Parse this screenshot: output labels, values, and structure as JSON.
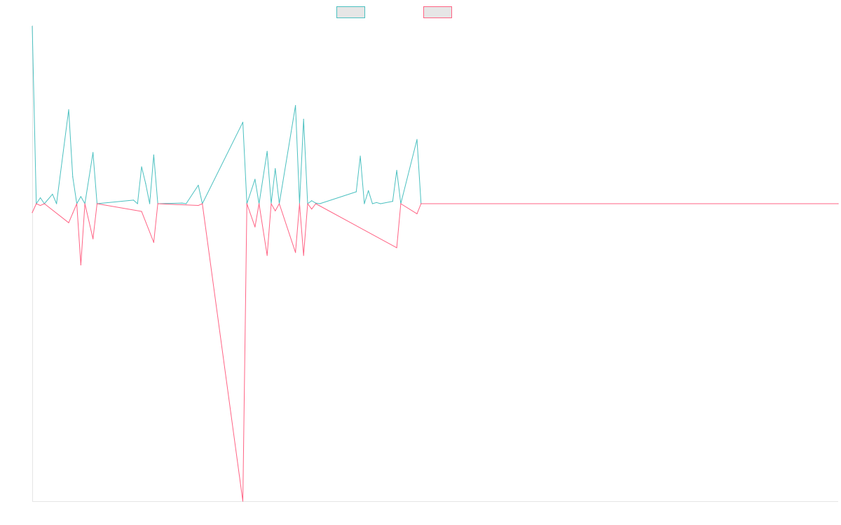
{
  "chart_data": {
    "type": "line",
    "title": "",
    "xlabel": "",
    "ylabel": "",
    "legend_placement": "top-center",
    "grid": false,
    "x_count": 200,
    "ylim": [
      -500,
      300
    ],
    "series": [
      {
        "color": "#4bc0c0",
        "fill": "#e6e6e6",
        "points": [
          [
            0,
            298
          ],
          [
            1,
            0
          ],
          [
            2,
            10
          ],
          [
            3,
            0
          ],
          [
            5,
            16
          ],
          [
            6,
            0
          ],
          [
            9,
            158
          ],
          [
            10,
            45
          ],
          [
            11,
            0
          ],
          [
            12,
            12
          ],
          [
            13,
            0
          ],
          [
            15,
            86
          ],
          [
            16,
            0
          ],
          [
            25,
            6
          ],
          [
            26,
            0
          ],
          [
            27,
            62
          ],
          [
            28,
            34
          ],
          [
            29,
            0
          ],
          [
            30,
            82
          ],
          [
            31,
            0
          ],
          [
            37,
            1
          ],
          [
            38,
            0
          ],
          [
            41,
            31
          ],
          [
            42,
            0
          ],
          [
            52,
            137
          ],
          [
            53,
            0
          ],
          [
            55,
            41
          ],
          [
            56,
            0
          ],
          [
            58,
            88
          ],
          [
            59,
            0
          ],
          [
            60,
            59
          ],
          [
            61,
            0
          ],
          [
            65,
            165
          ],
          [
            66,
            0
          ],
          [
            67,
            142
          ],
          [
            68,
            0
          ],
          [
            69,
            5
          ],
          [
            70,
            1
          ],
          [
            71,
            0
          ],
          [
            80,
            20
          ],
          [
            81,
            80
          ],
          [
            82,
            0
          ],
          [
            83,
            22
          ],
          [
            84,
            0
          ],
          [
            85,
            2
          ],
          [
            86,
            0
          ],
          [
            89,
            4
          ],
          [
            90,
            56
          ],
          [
            91,
            0
          ],
          [
            95,
            108
          ],
          [
            96,
            0
          ],
          [
            199,
            0
          ]
        ]
      },
      {
        "color": "#ff6384",
        "fill": "#e6e6e6",
        "points": [
          [
            0,
            -15
          ],
          [
            1,
            0
          ],
          [
            2,
            -3
          ],
          [
            3,
            0
          ],
          [
            9,
            -32
          ],
          [
            10,
            -16
          ],
          [
            11,
            0
          ],
          [
            12,
            -103
          ],
          [
            13,
            0
          ],
          [
            15,
            -59
          ],
          [
            16,
            0
          ],
          [
            27,
            -13
          ],
          [
            30,
            -65
          ],
          [
            31,
            0
          ],
          [
            41,
            -3
          ],
          [
            42,
            0
          ],
          [
            52,
            -500
          ],
          [
            53,
            0
          ],
          [
            55,
            -39
          ],
          [
            56,
            0
          ],
          [
            58,
            -87
          ],
          [
            59,
            0
          ],
          [
            60,
            -12
          ],
          [
            61,
            0
          ],
          [
            65,
            -82
          ],
          [
            66,
            0
          ],
          [
            67,
            -87
          ],
          [
            68,
            0
          ],
          [
            69,
            -9
          ],
          [
            70,
            0
          ],
          [
            90,
            -74
          ],
          [
            91,
            0
          ],
          [
            95,
            -17
          ],
          [
            96,
            0
          ],
          [
            199,
            0
          ]
        ]
      }
    ]
  }
}
